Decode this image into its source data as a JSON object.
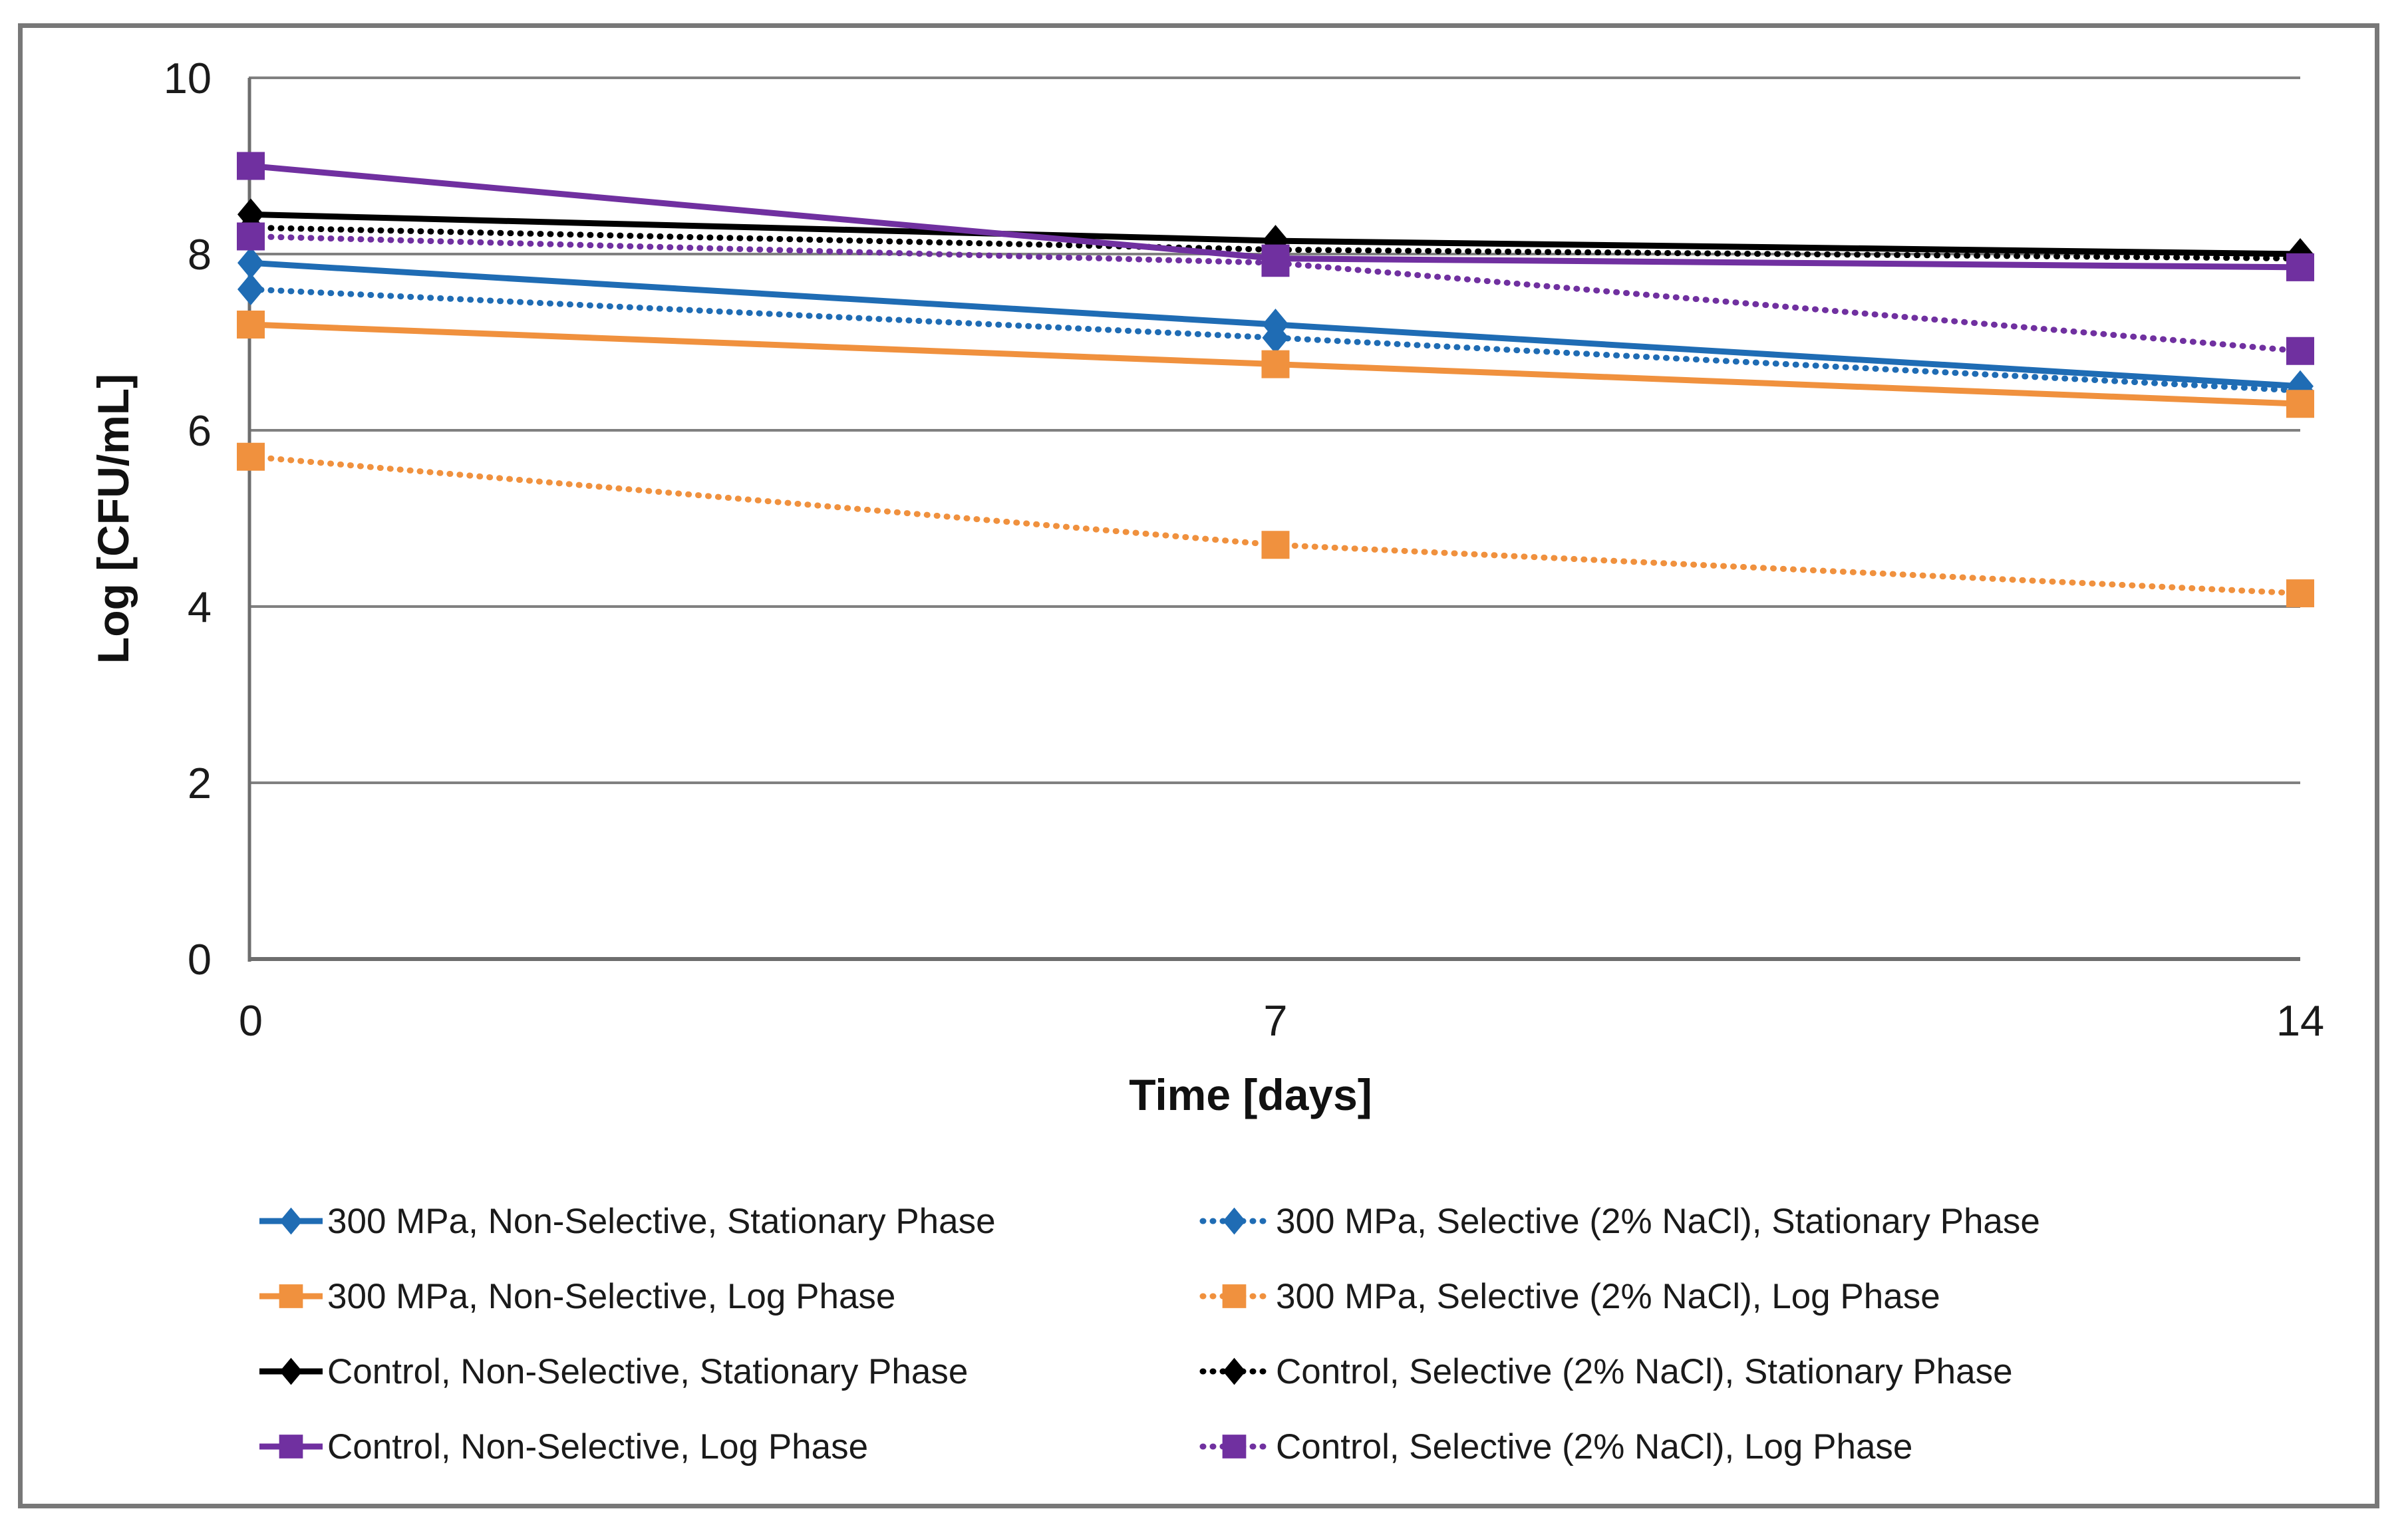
{
  "figure": {
    "background": "#ffffff",
    "border_color": "#787878"
  },
  "chart_data": {
    "type": "line",
    "title": "",
    "xlabel": "Time [days]",
    "ylabel": "Log [CFU/mL]",
    "x": [
      0,
      7,
      14
    ],
    "xticks": [
      "0",
      "7",
      "14"
    ],
    "yticks": [
      "0",
      "2",
      "4",
      "6",
      "8",
      "10"
    ],
    "ytick_values": [
      0,
      2,
      4,
      6,
      8,
      10
    ],
    "xlim": [
      0,
      14
    ],
    "ylim": [
      0,
      10
    ],
    "grid": "horizontal-only",
    "gridline_color": "#808080",
    "axis_line_color": "#6e6e6e",
    "legend_position": "bottom",
    "legend_columns": [
      [
        0,
        2,
        4,
        6
      ],
      [
        1,
        3,
        5,
        7
      ]
    ],
    "series": [
      {
        "name": "300 MPa, Non-Selective, Stationary Phase",
        "color": "#1f6cb4",
        "line": "solid",
        "marker": "diamond",
        "values": [
          7.9,
          7.2,
          6.5
        ]
      },
      {
        "name": "300 MPa, Selective (2% NaCl), Stationary Phase",
        "color": "#1f6cb4",
        "line": "dotted",
        "marker": "diamond",
        "values": [
          7.6,
          7.05,
          6.45
        ]
      },
      {
        "name": "300 MPa, Non-Selective, Log Phase",
        "color": "#f0913e",
        "line": "solid",
        "marker": "square",
        "values": [
          7.2,
          6.75,
          6.3
        ]
      },
      {
        "name": "300 MPa, Selective (2% NaCl), Log Phase",
        "color": "#f0913e",
        "line": "dotted",
        "marker": "square",
        "values": [
          5.7,
          4.7,
          4.15
        ]
      },
      {
        "name": "Control, Non-Selective, Stationary Phase",
        "color": "#000000",
        "line": "solid",
        "marker": "diamond",
        "values": [
          8.45,
          8.15,
          8.0
        ]
      },
      {
        "name": "Control, Selective (2% NaCl), Stationary Phase",
        "color": "#000000",
        "line": "dotted",
        "marker": "diamond",
        "values": [
          8.3,
          8.05,
          7.95
        ]
      },
      {
        "name": "Control, Non-Selective, Log Phase",
        "color": "#7030a0",
        "line": "solid",
        "marker": "square",
        "values": [
          9.0,
          7.95,
          7.85
        ]
      },
      {
        "name": "Control, Selective (2% NaCl), Log Phase",
        "color": "#7030a0",
        "line": "dotted",
        "marker": "square",
        "values": [
          8.2,
          7.9,
          6.9
        ]
      }
    ]
  }
}
